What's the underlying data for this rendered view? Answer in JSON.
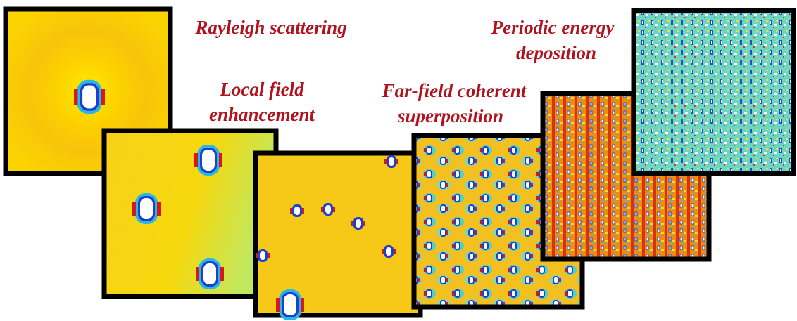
{
  "labels": [
    {
      "lines": [
        "Rayleigh scattering"
      ]
    },
    {
      "lines": [
        "Local field",
        "enhancement"
      ]
    },
    {
      "lines": [
        "Far-field coherent",
        "superposition"
      ]
    },
    {
      "lines": [
        "Periodic energy",
        "deposition"
      ]
    }
  ]
}
